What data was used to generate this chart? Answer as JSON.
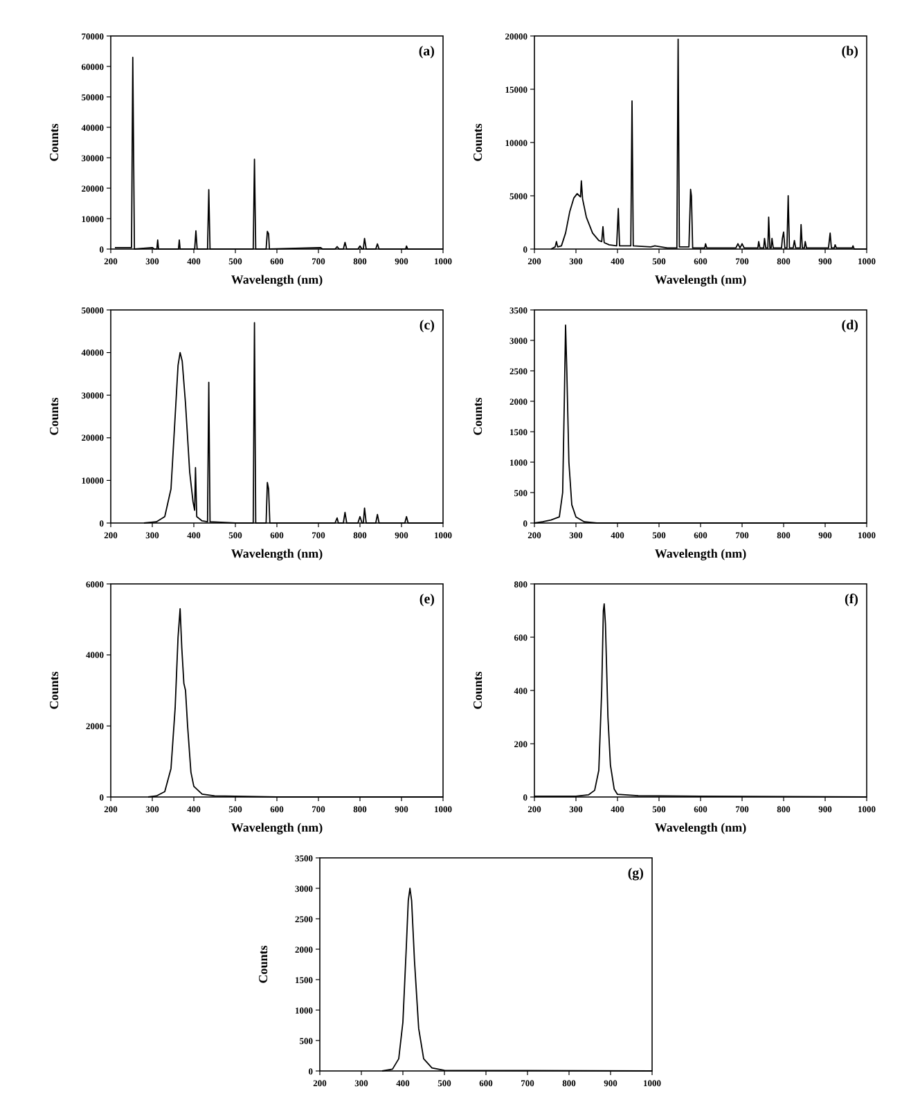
{
  "chart_data": [
    {
      "type": "line",
      "annotations": [
        "(a)"
      ],
      "xlabel": "Wavelength (nm)",
      "ylabel": "Counts",
      "xlim": [
        200,
        1000
      ],
      "xticks": [
        200,
        300,
        400,
        500,
        600,
        700,
        800,
        900,
        1000
      ],
      "ylim": [
        0,
        70000
      ],
      "yticks": [
        0,
        10000,
        20000,
        30000,
        40000,
        50000,
        60000,
        70000
      ],
      "series": [
        {
          "color": "#000000",
          "x": [
            210,
            245,
            250,
            253,
            257,
            300,
            305,
            311,
            313,
            315,
            363,
            365,
            367,
            402,
            405,
            408,
            433,
            436,
            439,
            543,
            546,
            549,
            574,
            577,
            580,
            582,
            705,
            710,
            740,
            745,
            750,
            760,
            764,
            768,
            795,
            800,
            805,
            808,
            811,
            815,
            838,
            842,
            846,
            910,
            912,
            915,
            1000
          ],
          "values": [
            500,
            500,
            500,
            63000,
            0,
            500,
            0,
            0,
            3000,
            0,
            0,
            3000,
            0,
            0,
            6000,
            0,
            0,
            19500,
            0,
            0,
            29500,
            0,
            0,
            5800,
            5000,
            0,
            500,
            0,
            0,
            800,
            0,
            0,
            2200,
            0,
            0,
            1000,
            0,
            0,
            3500,
            0,
            0,
            1700,
            0,
            0,
            1000,
            0,
            0
          ]
        }
      ]
    },
    {
      "type": "line",
      "annotations": [
        "(b)"
      ],
      "xlabel": "Wavelength (nm)",
      "ylabel": "Counts",
      "xlim": [
        200,
        1000
      ],
      "xticks": [
        200,
        300,
        400,
        500,
        600,
        700,
        800,
        900,
        1000
      ],
      "ylim": [
        0,
        20000
      ],
      "yticks": [
        0,
        5000,
        10000,
        15000,
        20000
      ],
      "series": [
        {
          "color": "#000000",
          "x": [
            240,
            250,
            253,
            256,
            265,
            275,
            285,
            295,
            303,
            308,
            311,
            313,
            316,
            325,
            340,
            355,
            362,
            365,
            368,
            380,
            398,
            402,
            405,
            420,
            432,
            435,
            438,
            480,
            490,
            520,
            543,
            546,
            549,
            572,
            576,
            578,
            581,
            610,
            612,
            615,
            685,
            690,
            695,
            700,
            705,
            738,
            740,
            743,
            752,
            754,
            757,
            762,
            764,
            767,
            770,
            772,
            775,
            795,
            797,
            800,
            803,
            808,
            811,
            814,
            823,
            826,
            829,
            840,
            842,
            845,
            850,
            852,
            855,
            908,
            912,
            915,
            922,
            924,
            927,
            965,
            967,
            970,
            1000
          ],
          "values": [
            0,
            200,
            700,
            200,
            300,
            1500,
            3500,
            4800,
            5200,
            5000,
            4900,
            6400,
            4700,
            3000,
            1500,
            800,
            700,
            2100,
            600,
            400,
            300,
            3800,
            300,
            300,
            300,
            13900,
            300,
            200,
            300,
            100,
            100,
            19700,
            200,
            200,
            5600,
            5000,
            100,
            100,
            500,
            100,
            100,
            500,
            100,
            500,
            100,
            100,
            700,
            100,
            100,
            1000,
            100,
            100,
            3000,
            100,
            100,
            1000,
            100,
            100,
            1000,
            1600,
            100,
            100,
            5000,
            100,
            100,
            800,
            100,
            100,
            2300,
            100,
            100,
            700,
            100,
            100,
            1500,
            100,
            100,
            400,
            100,
            100,
            300,
            0,
            0
          ]
        }
      ]
    },
    {
      "type": "line",
      "annotations": [
        "(c)"
      ],
      "xlabel": "Wavelength (nm)",
      "ylabel": "Counts",
      "xlim": [
        200,
        1000
      ],
      "xticks": [
        200,
        300,
        400,
        500,
        600,
        700,
        800,
        900,
        1000
      ],
      "ylim": [
        0,
        50000
      ],
      "yticks": [
        0,
        10000,
        20000,
        30000,
        40000,
        50000
      ],
      "series": [
        {
          "color": "#000000",
          "x": [
            280,
            310,
            330,
            345,
            355,
            362,
            367,
            372,
            380,
            390,
            398,
            402,
            404,
            407,
            420,
            433,
            436,
            439,
            500,
            543,
            546,
            549,
            574,
            577,
            580,
            583,
            700,
            740,
            745,
            748,
            760,
            764,
            768,
            795,
            800,
            805,
            808,
            811,
            815,
            838,
            842,
            846,
            908,
            912,
            916,
            1000
          ],
          "values": [
            0,
            300,
            1500,
            8000,
            25000,
            37000,
            40000,
            38000,
            28000,
            12000,
            5000,
            3000,
            13000,
            1500,
            500,
            300,
            33000,
            300,
            0,
            0,
            47000,
            0,
            0,
            9500,
            8000,
            0,
            0,
            0,
            1200,
            0,
            0,
            2500,
            0,
            0,
            1500,
            0,
            0,
            3500,
            0,
            0,
            2000,
            0,
            0,
            1500,
            0,
            0
          ]
        }
      ]
    },
    {
      "type": "line",
      "annotations": [
        "(d)"
      ],
      "xlabel": "Wavelength (nm)",
      "ylabel": "Counts",
      "xlim": [
        200,
        1000
      ],
      "xticks": [
        200,
        300,
        400,
        500,
        600,
        700,
        800,
        900,
        1000
      ],
      "ylim": [
        0,
        3500
      ],
      "yticks": [
        0,
        500,
        1000,
        1500,
        2000,
        2500,
        3000,
        3500
      ],
      "series": [
        {
          "color": "#000000",
          "x": [
            200,
            220,
            240,
            260,
            268,
            272,
            275,
            278,
            283,
            290,
            300,
            320,
            350,
            1000
          ],
          "values": [
            0,
            20,
            50,
            100,
            500,
            2000,
            3250,
            2500,
            1000,
            300,
            100,
            20,
            0,
            0
          ]
        }
      ]
    },
    {
      "type": "line",
      "annotations": [
        "(e)"
      ],
      "xlabel": "Wavelength (nm)",
      "ylabel": "Counts",
      "xlim": [
        200,
        1000
      ],
      "xticks": [
        200,
        300,
        400,
        500,
        600,
        700,
        800,
        900,
        1000
      ],
      "ylim": [
        0,
        6000
      ],
      "yticks": [
        0,
        2000,
        4000,
        6000
      ],
      "series": [
        {
          "color": "#000000",
          "x": [
            290,
            310,
            330,
            345,
            355,
            362,
            367,
            371,
            376,
            380,
            385,
            393,
            400,
            420,
            450,
            600,
            1000
          ],
          "values": [
            0,
            30,
            150,
            800,
            2500,
            4500,
            5300,
            4200,
            3200,
            3000,
            2000,
            700,
            300,
            80,
            30,
            0,
            0
          ]
        }
      ]
    },
    {
      "type": "line",
      "annotations": [
        "(f)"
      ],
      "xlabel": "Wavelength (nm)",
      "ylabel": "Counts",
      "xlim": [
        200,
        1000
      ],
      "xticks": [
        200,
        300,
        400,
        500,
        600,
        700,
        800,
        900,
        1000
      ],
      "ylim": [
        0,
        800
      ],
      "yticks": [
        0,
        200,
        400,
        600,
        800
      ],
      "series": [
        {
          "color": "#000000",
          "x": [
            200,
            300,
            330,
            345,
            355,
            362,
            366,
            368,
            371,
            377,
            383,
            392,
            400,
            450,
            600,
            1000
          ],
          "values": [
            3,
            3,
            8,
            25,
            100,
            400,
            700,
            725,
            650,
            300,
            120,
            30,
            10,
            5,
            3,
            0
          ]
        }
      ]
    },
    {
      "type": "line",
      "annotations": [
        "(g)"
      ],
      "ylabel": "Counts",
      "xlim": [
        200,
        1000
      ],
      "xticks": [
        200,
        300,
        400,
        500,
        600,
        700,
        800,
        900,
        1000
      ],
      "ylim": [
        0,
        3500
      ],
      "yticks": [
        0,
        500,
        1000,
        1500,
        2000,
        2500,
        3000,
        3500
      ],
      "series": [
        {
          "color": "#000000",
          "x": [
            350,
            375,
            390,
            400,
            408,
            413,
            417,
            421,
            428,
            438,
            450,
            470,
            500,
            1000
          ],
          "values": [
            0,
            30,
            200,
            800,
            2000,
            2800,
            3000,
            2800,
            1800,
            700,
            200,
            50,
            10,
            0
          ]
        }
      ]
    }
  ]
}
